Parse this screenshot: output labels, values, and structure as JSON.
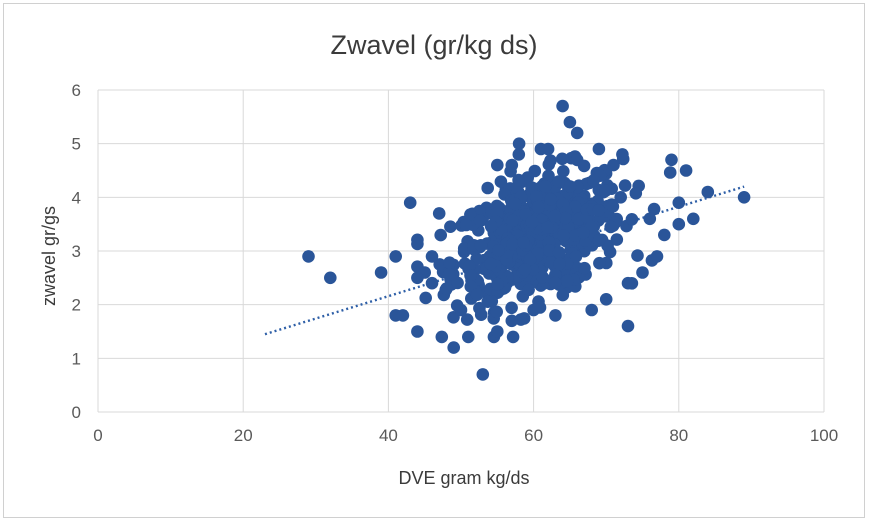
{
  "chart_data": {
    "type": "scatter",
    "title": "Zwavel (gr/kg ds)",
    "xlabel": "DVE gram kg/ds",
    "ylabel": "zwavel gr/gs",
    "xlim": [
      0,
      100
    ],
    "ylim": [
      0,
      6
    ],
    "x_ticks": [
      "0",
      "20",
      "40",
      "60",
      "80",
      "100"
    ],
    "y_ticks": [
      "0",
      "1",
      "2",
      "3",
      "4",
      "5",
      "6"
    ],
    "grid": true,
    "legend": "none",
    "marker_color": "#2a5599",
    "trendline": {
      "style": "dotted",
      "color": "#2e5fa7",
      "x": [
        23,
        89
      ],
      "y": [
        1.45,
        4.2
      ]
    },
    "outlier_points": [
      [
        29,
        2.9
      ],
      [
        32,
        2.5
      ],
      [
        39,
        2.6
      ],
      [
        41,
        2.9
      ],
      [
        41,
        1.8
      ],
      [
        42,
        1.8
      ],
      [
        43,
        3.9
      ],
      [
        44,
        1.5
      ],
      [
        47,
        3.7
      ],
      [
        49,
        1.2
      ],
      [
        53,
        0.7
      ],
      [
        64,
        5.7
      ],
      [
        65,
        5.4
      ],
      [
        66,
        5.2
      ],
      [
        69,
        4.9
      ],
      [
        71,
        4.6
      ],
      [
        73,
        1.6
      ],
      [
        79,
        4.7
      ],
      [
        81,
        4.5
      ],
      [
        84,
        4.1
      ],
      [
        89,
        4.0
      ],
      [
        82,
        3.6
      ],
      [
        80,
        3.9
      ],
      [
        80,
        3.5
      ],
      [
        78,
        3.3
      ],
      [
        77,
        2.9
      ],
      [
        76,
        3.6
      ],
      [
        72,
        4.0
      ],
      [
        75,
        2.6
      ],
      [
        73,
        2.4
      ],
      [
        70,
        2.1
      ],
      [
        68,
        1.9
      ],
      [
        58,
        5.0
      ],
      [
        61,
        4.9
      ],
      [
        62,
        4.9
      ],
      [
        45,
        2.6
      ],
      [
        44,
        2.5
      ],
      [
        46,
        2.4
      ],
      [
        46,
        2.9
      ],
      [
        48,
        2.3
      ],
      [
        51,
        1.4
      ],
      [
        55,
        1.5
      ],
      [
        50,
        1.9
      ],
      [
        57,
        1.7
      ],
      [
        60,
        1.9
      ],
      [
        63,
        1.8
      ],
      [
        55,
        4.6
      ],
      [
        57,
        4.6
      ]
    ],
    "cluster": {
      "count": 620,
      "x_mean": 60.5,
      "x_sd": 5.8,
      "y_sd": 0.55,
      "x_range": [
        44,
        80
      ],
      "y_range": [
        1.4,
        4.8
      ]
    }
  }
}
